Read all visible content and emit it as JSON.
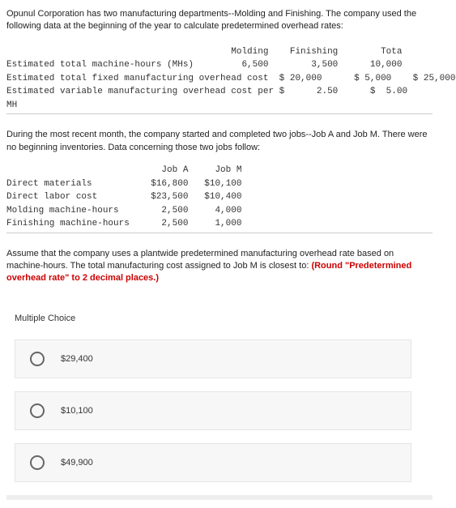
{
  "intro": "Opunul Corporation has two manufacturing departments--Molding and Finishing. The company used the following data at the beginning of the year to calculate predetermined overhead rates:",
  "table1": {
    "h1": "Molding",
    "h2": "Finishing",
    "h3": "Tota",
    "r1_label": "Estimated total machine-hours (MHs)",
    "r1_c1": "6,500",
    "r1_c2": "3,500",
    "r1_c3": "10,000",
    "r2_label": "Estimated total fixed manufacturing overhead cost",
    "r2_c1": "$ 20,000",
    "r2_c2": "$ 5,000",
    "r2_c3": "$ 25,000",
    "r3_label": "Estimated variable manufacturing overhead cost per $",
    "r3_c1": "2.50",
    "r3_c2": "$  5.00",
    "r4_label": "MH"
  },
  "section2": "During the most recent month, the company started and completed two jobs--Job A and Job M. There were no beginning inventories. Data concerning those two jobs follow:",
  "table2": {
    "h1": "Job A",
    "h2": "Job M",
    "r1_label": "Direct materials",
    "r1_c1": "$16,800",
    "r1_c2": "$10,100",
    "r2_label": "Direct labor cost",
    "r2_c1": "$23,500",
    "r2_c2": "$10,400",
    "r3_label": "Molding machine-hours",
    "r3_c1": "2,500",
    "r3_c2": "4,000",
    "r4_label": "Finishing machine-hours",
    "r4_c1": "2,500",
    "r4_c2": "1,000"
  },
  "assume_p1": "Assume that the company uses a plantwide predetermined manufacturing overhead rate based on machine-hours. The total manufacturing cost assigned to Job M is closest to: ",
  "assume_bold": "(Round \"Predetermined overhead rate\" to 2 decimal places.)",
  "mc_header": "Multiple Choice",
  "options": {
    "a": "$29,400",
    "b": "$10,100",
    "c": "$49,900"
  }
}
